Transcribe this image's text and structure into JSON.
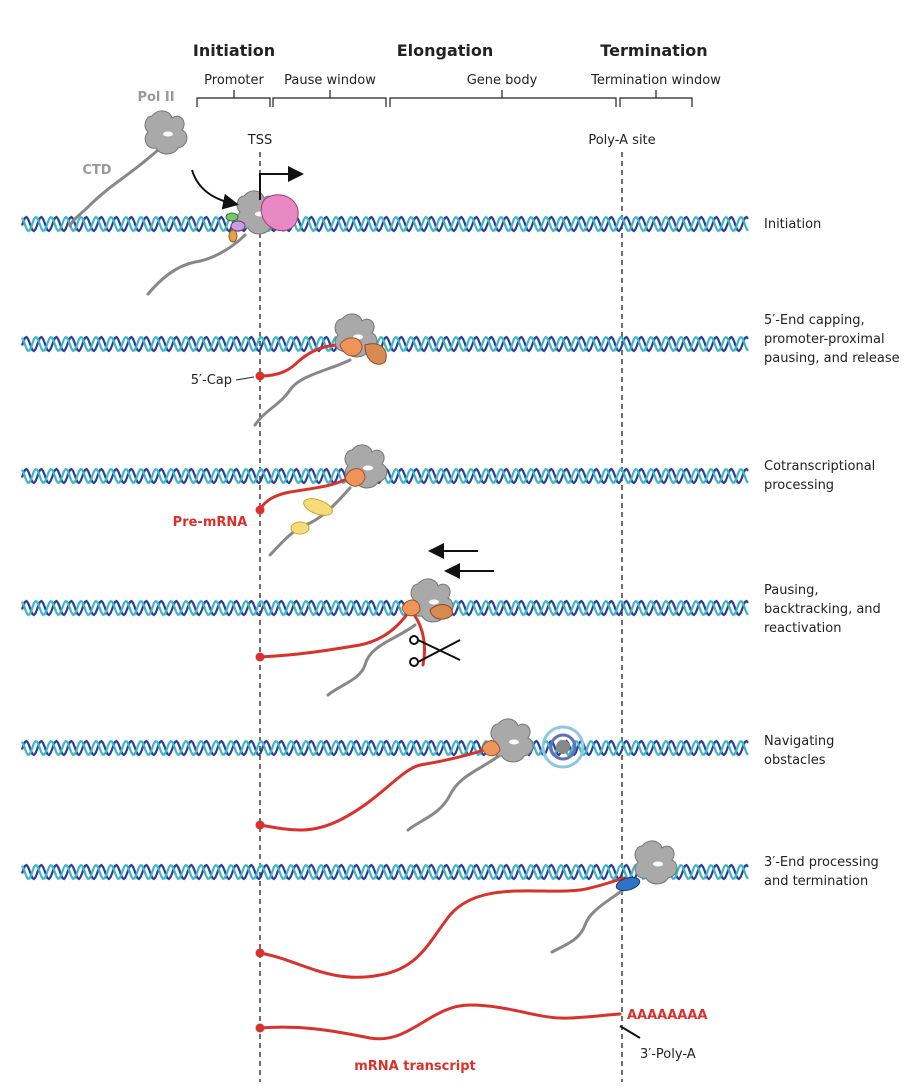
{
  "phases": [
    "Initiation",
    "Elongation",
    "Termination"
  ],
  "regions": [
    "Promoter",
    "Pause window",
    "Gene body",
    "Termination window"
  ],
  "markers": [
    "TSS",
    "Poly-A site"
  ],
  "labels": {
    "pol2": "Pol II",
    "ctd": "CTD",
    "cap": "5′-Cap",
    "premrna": "Pre-mRNA",
    "polya_tail": "AAAAAAAA",
    "polya": "3′-Poly-A",
    "mrna": "mRNA transcript"
  },
  "steps": [
    [
      "Initiation"
    ],
    [
      "5′-End capping,",
      "promoter-proximal",
      "pausing, and release"
    ],
    [
      "Cotranscriptional",
      "processing"
    ],
    [
      "Pausing,",
      "backtracking, and",
      "reactivation"
    ],
    [
      "Navigating",
      "obstacles"
    ],
    [
      "3′-End processing",
      "and termination"
    ]
  ]
}
